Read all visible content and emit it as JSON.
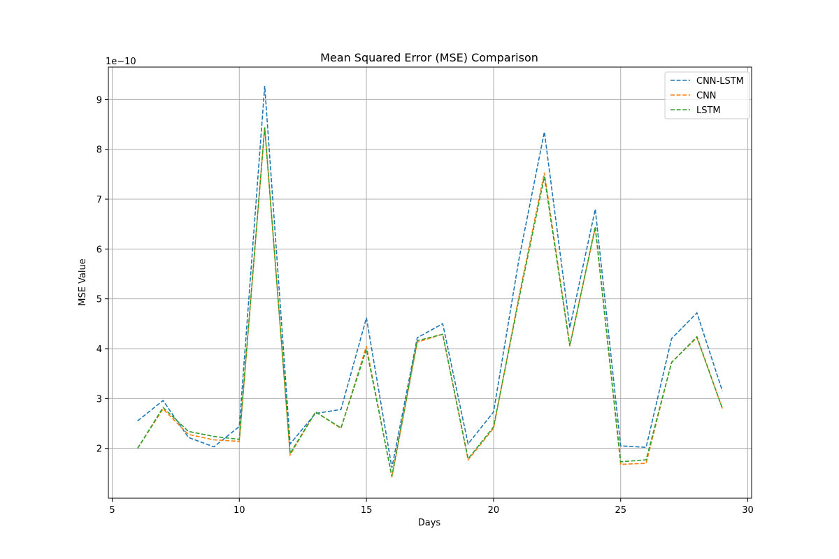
{
  "chart_data": {
    "type": "line",
    "title": "Mean Squared Error (MSE) Comparison",
    "xlabel": "Days",
    "ylabel": "MSE Value",
    "y_scale_label": "1e−10",
    "xlim": [
      4.85,
      30.15
    ],
    "ylim": [
      1e-10,
      9.65e-10
    ],
    "x_ticks": [
      5,
      10,
      15,
      20,
      25,
      30
    ],
    "y_ticks": [
      2e-10,
      3e-10,
      4e-10,
      5e-10,
      6e-10,
      7e-10,
      8e-10,
      9e-10
    ],
    "y_tick_labels": [
      "2",
      "3",
      "4",
      "5",
      "6",
      "7",
      "8",
      "9"
    ],
    "grid": true,
    "legend_position": "top-right",
    "line_style": "dashed",
    "x": [
      6,
      7,
      8,
      9,
      10,
      11,
      12,
      13,
      14,
      15,
      16,
      17,
      18,
      19,
      20,
      21,
      22,
      23,
      24,
      25,
      26,
      27,
      28,
      29
    ],
    "series": [
      {
        "name": "CNN-LSTM",
        "color": "#1f77b4",
        "values": [
          2.55e-10,
          2.96e-10,
          2.22e-10,
          2.03e-10,
          2.44e-10,
          9.27e-10,
          2.09e-10,
          2.7e-10,
          2.78e-10,
          4.62e-10,
          1.61e-10,
          4.22e-10,
          4.5e-10,
          2.09e-10,
          2.73e-10,
          5.8e-10,
          8.35e-10,
          4.42e-10,
          6.8e-10,
          2.05e-10,
          2.02e-10,
          4.2e-10,
          4.72e-10,
          3.15e-10
        ]
      },
      {
        "name": "CNN",
        "color": "#ff7f0e",
        "values": [
          2e-10,
          2.79e-10,
          2.28e-10,
          2.17e-10,
          2.14e-10,
          8.45e-10,
          1.87e-10,
          2.73e-10,
          2.4e-10,
          4.05e-10,
          1.42e-10,
          4.13e-10,
          4.29e-10,
          1.77e-10,
          2.4e-10,
          5.05e-10,
          7.53e-10,
          4.07e-10,
          6.42e-10,
          1.68e-10,
          1.7e-10,
          3.73e-10,
          4.22e-10,
          2.8e-10
        ]
      },
      {
        "name": "LSTM",
        "color": "#2ca02c",
        "values": [
          2e-10,
          2.82e-10,
          2.34e-10,
          2.24e-10,
          2.18e-10,
          8.44e-10,
          1.9e-10,
          2.73e-10,
          2.41e-10,
          3.99e-10,
          1.44e-10,
          4.16e-10,
          4.29e-10,
          1.79e-10,
          2.43e-10,
          5e-10,
          7.45e-10,
          4.05e-10,
          6.45e-10,
          1.73e-10,
          1.77e-10,
          3.72e-10,
          4.24e-10,
          2.8e-10
        ]
      }
    ]
  }
}
